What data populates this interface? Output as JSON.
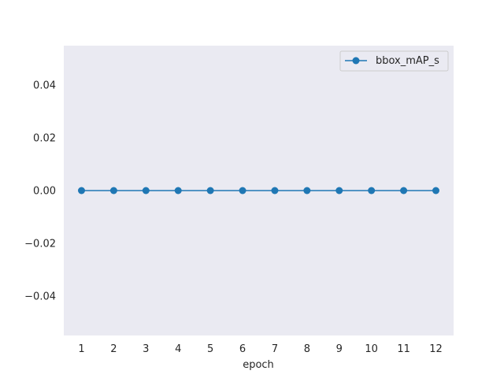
{
  "chart_data": {
    "type": "line",
    "title": "",
    "xlabel": "epoch",
    "ylabel": "",
    "x": [
      1,
      2,
      3,
      4,
      5,
      6,
      7,
      8,
      9,
      10,
      11,
      12
    ],
    "series": [
      {
        "name": "bbox_mAP_s",
        "values": [
          0,
          0,
          0,
          0,
          0,
          0,
          0,
          0,
          0,
          0,
          0,
          0
        ],
        "color": "#1f77b4",
        "marker": "circle"
      }
    ],
    "xticks": [
      "1",
      "2",
      "3",
      "4",
      "5",
      "6",
      "7",
      "8",
      "9",
      "10",
      "11",
      "12"
    ],
    "yticks": [
      "0.04",
      "0.02",
      "0.00",
      "−0.02",
      "−0.04"
    ],
    "ytick_values": [
      0.04,
      0.02,
      0.0,
      -0.02,
      -0.04
    ],
    "xlim": [
      0.45,
      12.55
    ],
    "ylim": [
      -0.055,
      0.055
    ],
    "grid": false,
    "legend_position": "top-right",
    "background_color": "#eaeaf2"
  }
}
